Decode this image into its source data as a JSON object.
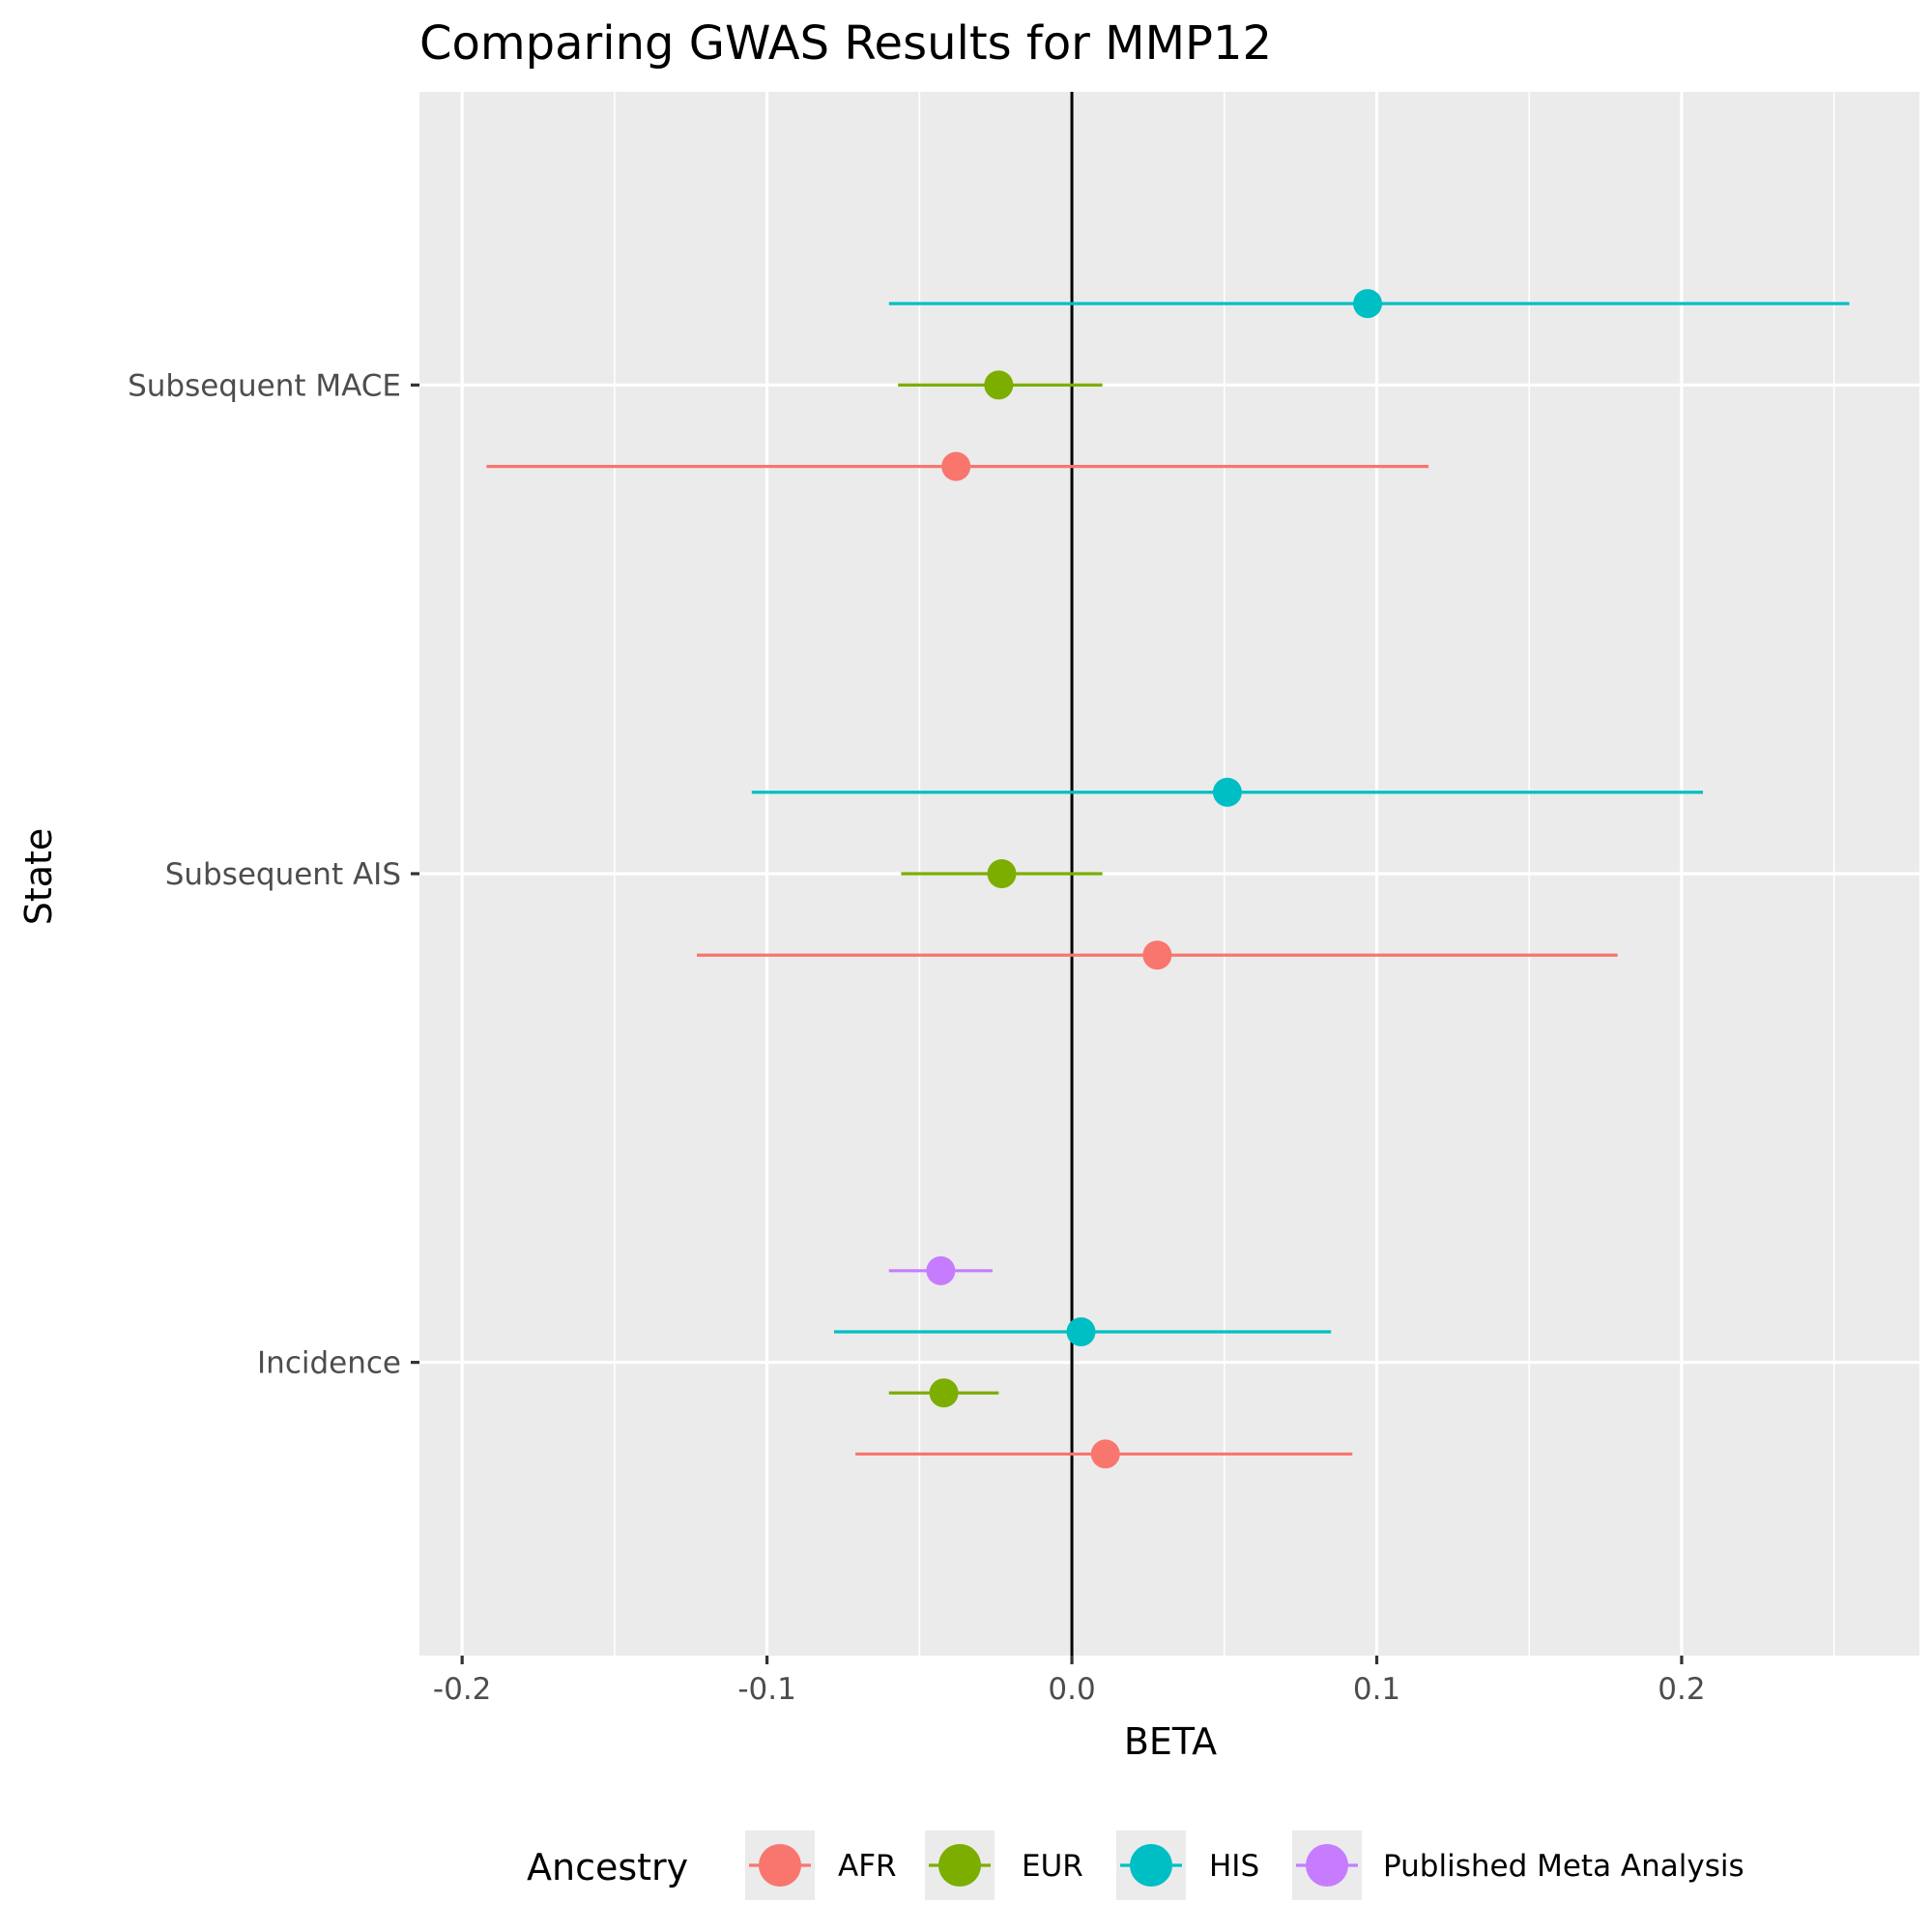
{
  "chart_data": {
    "type": "scatter",
    "title": "Comparing GWAS Results for MMP12",
    "xlabel": "BETA",
    "ylabel": "State",
    "xlim": [
      -0.214,
      0.278
    ],
    "x_ticks": [
      {
        "value": -0.2,
        "label": "-0.2"
      },
      {
        "value": -0.1,
        "label": "-0.1"
      },
      {
        "value": 0.0,
        "label": "0.0"
      },
      {
        "value": 0.1,
        "label": "0.1"
      },
      {
        "value": 0.2,
        "label": "0.2"
      }
    ],
    "categories": [
      "Incidence",
      "Subsequent AIS",
      "Subsequent MACE"
    ],
    "reference_line_x": 0,
    "grid": true,
    "legend_title": "Ancestry",
    "legend_position": "bottom",
    "series": [
      {
        "name": "AFR",
        "color": "#F8766D",
        "points": [
          {
            "category": "Incidence",
            "beta": 0.011,
            "lower": -0.071,
            "upper": 0.092
          },
          {
            "category": "Subsequent AIS",
            "beta": 0.028,
            "lower": -0.123,
            "upper": 0.179
          },
          {
            "category": "Subsequent MACE",
            "beta": -0.038,
            "lower": -0.192,
            "upper": 0.117
          }
        ]
      },
      {
        "name": "EUR",
        "color": "#7CAE00",
        "points": [
          {
            "category": "Incidence",
            "beta": -0.042,
            "lower": -0.06,
            "upper": -0.024
          },
          {
            "category": "Subsequent AIS",
            "beta": -0.023,
            "lower": -0.056,
            "upper": 0.01
          },
          {
            "category": "Subsequent MACE",
            "beta": -0.024,
            "lower": -0.057,
            "upper": 0.01
          }
        ]
      },
      {
        "name": "HIS",
        "color": "#00BFC4",
        "points": [
          {
            "category": "Incidence",
            "beta": 0.003,
            "lower": -0.078,
            "upper": 0.085
          },
          {
            "category": "Subsequent AIS",
            "beta": 0.051,
            "lower": -0.105,
            "upper": 0.207
          },
          {
            "category": "Subsequent MACE",
            "beta": 0.097,
            "lower": -0.06,
            "upper": 0.255
          }
        ]
      },
      {
        "name": "Published Meta Analysis",
        "color": "#C77CFF",
        "points": [
          {
            "category": "Incidence",
            "beta": -0.043,
            "lower": -0.06,
            "upper": -0.026
          }
        ]
      }
    ]
  }
}
